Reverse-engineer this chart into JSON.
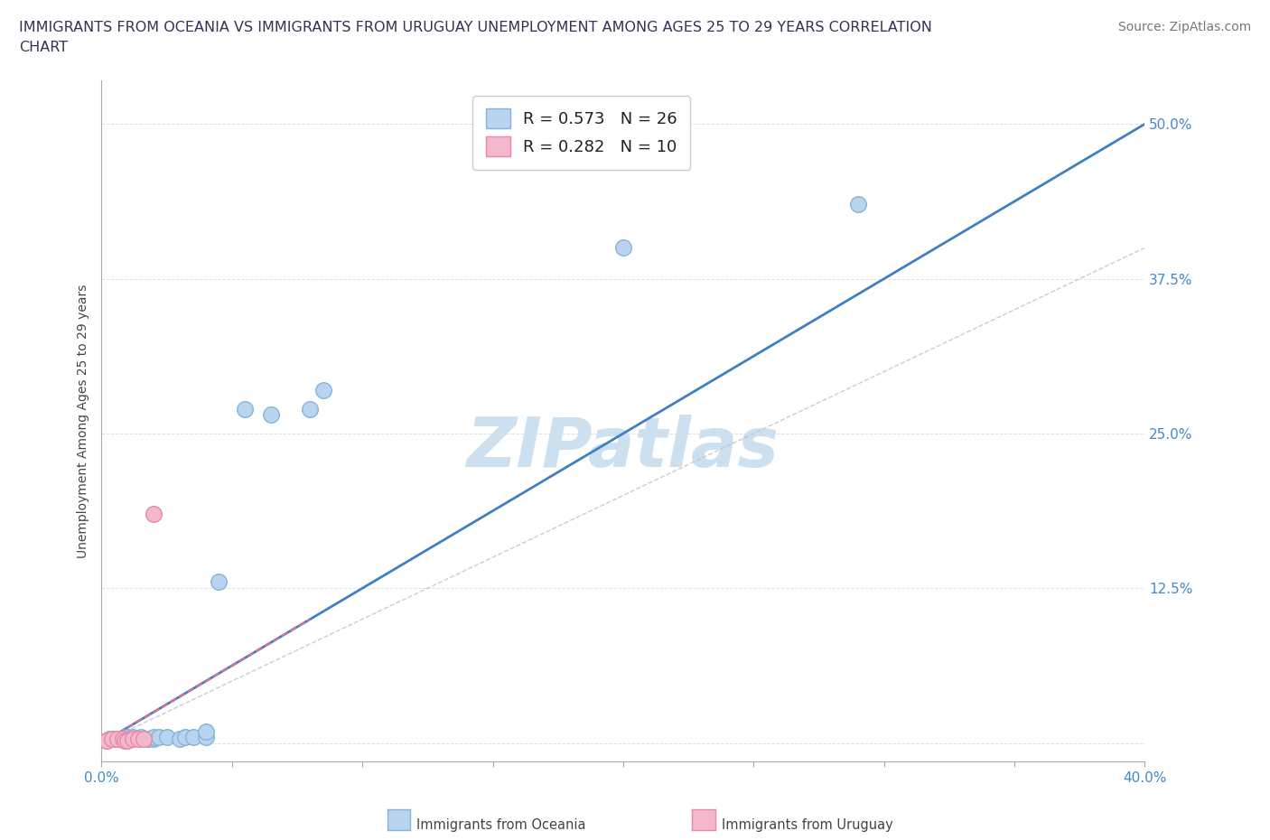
{
  "title": "IMMIGRANTS FROM OCEANIA VS IMMIGRANTS FROM URUGUAY UNEMPLOYMENT AMONG AGES 25 TO 29 YEARS CORRELATION\nCHART",
  "source_text": "Source: ZipAtlas.com",
  "ylabel": "Unemployment Among Ages 25 to 29 years",
  "xlim": [
    0.0,
    0.4
  ],
  "ylim": [
    -0.015,
    0.535
  ],
  "xtick_vals": [
    0.0,
    0.05,
    0.1,
    0.15,
    0.2,
    0.25,
    0.3,
    0.35,
    0.4
  ],
  "ytick_vals": [
    0.0,
    0.125,
    0.25,
    0.375,
    0.5
  ],
  "ytick_labels_right": [
    "",
    "12.5%",
    "25.0%",
    "37.5%",
    "50.0%"
  ],
  "grid_color": "#cccccc",
  "background_color": "#ffffff",
  "oceania_color": "#b8d4ee",
  "oceania_edge_color": "#85b4d8",
  "uruguay_color": "#f4b8cc",
  "uruguay_edge_color": "#e888a8",
  "R_oceania": 0.573,
  "N_oceania": 26,
  "R_uruguay": 0.282,
  "N_uruguay": 10,
  "line_oceania_color": "#4080c0",
  "line_uruguay_color": "#e07090",
  "diag_color": "#c0c0c0",
  "watermark": "ZIPatlas",
  "watermark_color": "#cce0f0",
  "tick_label_color": "#4488cc",
  "title_color": "#333355",
  "source_color": "#777777",
  "oceania_points": [
    [
      0.002,
      0.002
    ],
    [
      0.003,
      0.003
    ],
    [
      0.005,
      0.003
    ],
    [
      0.007,
      0.003
    ],
    [
      0.008,
      0.003
    ],
    [
      0.01,
      0.003
    ],
    [
      0.01,
      0.005
    ],
    [
      0.012,
      0.005
    ],
    [
      0.015,
      0.005
    ],
    [
      0.018,
      0.003
    ],
    [
      0.02,
      0.003
    ],
    [
      0.02,
      0.005
    ],
    [
      0.022,
      0.005
    ],
    [
      0.025,
      0.005
    ],
    [
      0.03,
      0.003
    ],
    [
      0.032,
      0.005
    ],
    [
      0.035,
      0.005
    ],
    [
      0.04,
      0.005
    ],
    [
      0.04,
      0.009
    ],
    [
      0.045,
      0.13
    ],
    [
      0.055,
      0.27
    ],
    [
      0.065,
      0.265
    ],
    [
      0.08,
      0.27
    ],
    [
      0.085,
      0.285
    ],
    [
      0.2,
      0.4
    ],
    [
      0.29,
      0.435
    ]
  ],
  "uruguay_points": [
    [
      0.002,
      0.002
    ],
    [
      0.004,
      0.003
    ],
    [
      0.006,
      0.003
    ],
    [
      0.008,
      0.003
    ],
    [
      0.009,
      0.002
    ],
    [
      0.01,
      0.002
    ],
    [
      0.012,
      0.003
    ],
    [
      0.014,
      0.003
    ],
    [
      0.016,
      0.003
    ],
    [
      0.02,
      0.185
    ]
  ]
}
